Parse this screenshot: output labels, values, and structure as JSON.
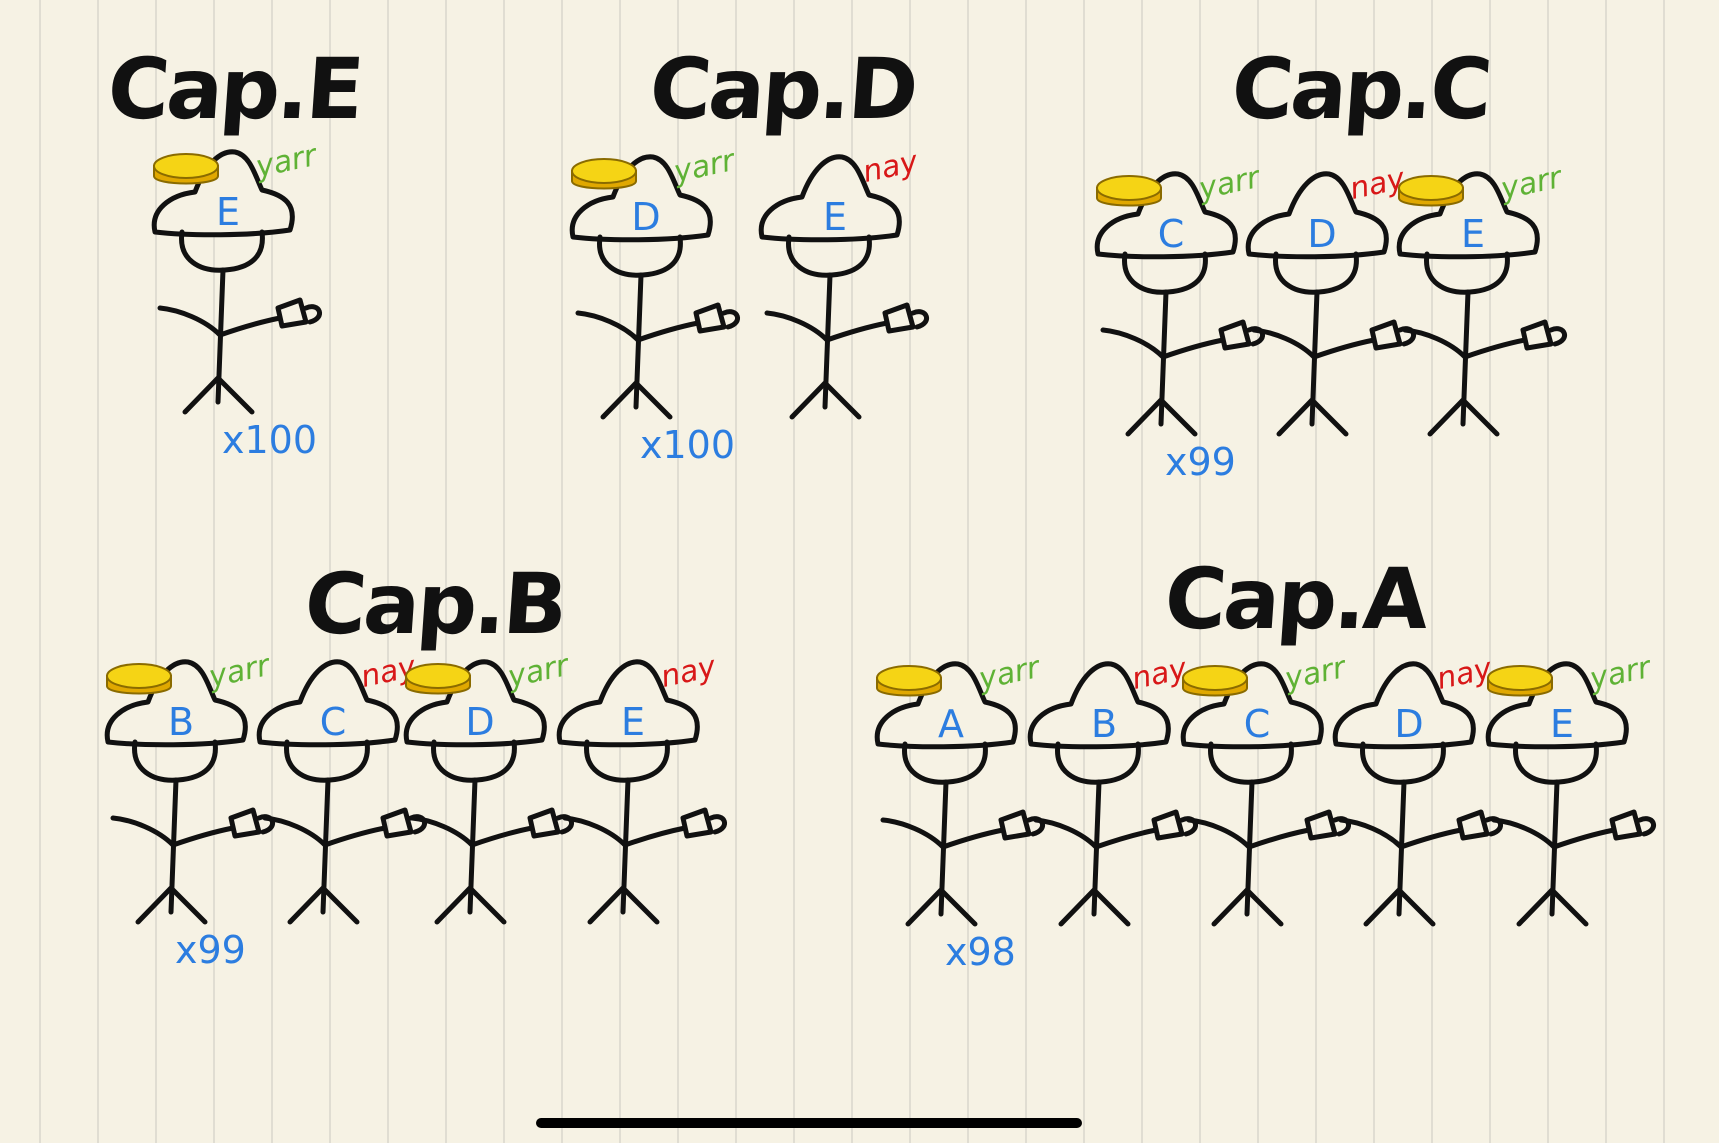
{
  "colors": {
    "paper": "#f6f2e4",
    "rule_line": "#d9d6cc",
    "ink": "#111111",
    "hat_letter": "#2c7de0",
    "coin_count": "#2c7de0",
    "yarr": "#5fb235",
    "nay": "#d81818",
    "coin_fill": "#f5d415",
    "coin_side": "#e0a800"
  },
  "groups": [
    {
      "title": "Cap.E",
      "pirates": [
        {
          "letter": "E",
          "vote": "yarr",
          "vote_color": "#5fb235",
          "coin": true,
          "coin_count": "x100"
        }
      ]
    },
    {
      "title": "Cap.D",
      "pirates": [
        {
          "letter": "D",
          "vote": "yarr",
          "vote_color": "#5fb235",
          "coin": true,
          "coin_count": "x100"
        },
        {
          "letter": "E",
          "vote": "nay",
          "vote_color": "#d81818",
          "coin": false,
          "coin_count": ""
        }
      ]
    },
    {
      "title": "Cap.C",
      "pirates": [
        {
          "letter": "C",
          "vote": "yarr",
          "vote_color": "#5fb235",
          "coin": true,
          "coin_count": "x99"
        },
        {
          "letter": "D",
          "vote": "nay",
          "vote_color": "#d81818",
          "coin": false,
          "coin_count": ""
        },
        {
          "letter": "E",
          "vote": "yarr",
          "vote_color": "#5fb235",
          "coin": true,
          "coin_count": ""
        }
      ]
    },
    {
      "title": "Cap.B",
      "pirates": [
        {
          "letter": "B",
          "vote": "yarr",
          "vote_color": "#5fb235",
          "coin": true,
          "coin_count": "x99"
        },
        {
          "letter": "C",
          "vote": "nay",
          "vote_color": "#d81818",
          "coin": false,
          "coin_count": ""
        },
        {
          "letter": "D",
          "vote": "yarr",
          "vote_color": "#5fb235",
          "coin": true,
          "coin_count": ""
        },
        {
          "letter": "E",
          "vote": "nay",
          "vote_color": "#d81818",
          "coin": false,
          "coin_count": ""
        }
      ]
    },
    {
      "title": "Cap.A",
      "pirates": [
        {
          "letter": "A",
          "vote": "yarr",
          "vote_color": "#5fb235",
          "coin": true,
          "coin_count": "x98"
        },
        {
          "letter": "B",
          "vote": "nay",
          "vote_color": "#d81818",
          "coin": false,
          "coin_count": ""
        },
        {
          "letter": "C",
          "vote": "yarr",
          "vote_color": "#5fb235",
          "coin": true,
          "coin_count": ""
        },
        {
          "letter": "D",
          "vote": "nay",
          "vote_color": "#d81818",
          "coin": false,
          "coin_count": ""
        },
        {
          "letter": "E",
          "vote": "yarr",
          "vote_color": "#5fb235",
          "coin": true,
          "coin_count": ""
        }
      ]
    }
  ]
}
